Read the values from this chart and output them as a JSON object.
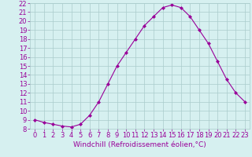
{
  "x": [
    0,
    1,
    2,
    3,
    4,
    5,
    6,
    7,
    8,
    9,
    10,
    11,
    12,
    13,
    14,
    15,
    16,
    17,
    18,
    19,
    20,
    21,
    22,
    23
  ],
  "y": [
    9.0,
    8.7,
    8.5,
    8.3,
    8.2,
    8.5,
    9.5,
    11.0,
    13.0,
    15.0,
    16.5,
    18.0,
    19.5,
    20.5,
    21.5,
    21.8,
    21.5,
    20.5,
    19.0,
    17.5,
    15.5,
    13.5,
    12.0,
    11.0
  ],
  "line_color": "#990099",
  "marker": "D",
  "marker_size": 2,
  "bg_color": "#d6f0f0",
  "grid_color": "#aacccc",
  "xlabel": "Windchill (Refroidissement éolien,°C)",
  "xlabel_color": "#990099",
  "xlabel_fontsize": 6.5,
  "tick_color": "#990099",
  "tick_fontsize": 6,
  "ylim": [
    8,
    22
  ],
  "xlim": [
    -0.5,
    23.5
  ],
  "yticks": [
    8,
    9,
    10,
    11,
    12,
    13,
    14,
    15,
    16,
    17,
    18,
    19,
    20,
    21,
    22
  ],
  "xticks": [
    0,
    1,
    2,
    3,
    4,
    5,
    6,
    7,
    8,
    9,
    10,
    11,
    12,
    13,
    14,
    15,
    16,
    17,
    18,
    19,
    20,
    21,
    22,
    23
  ]
}
